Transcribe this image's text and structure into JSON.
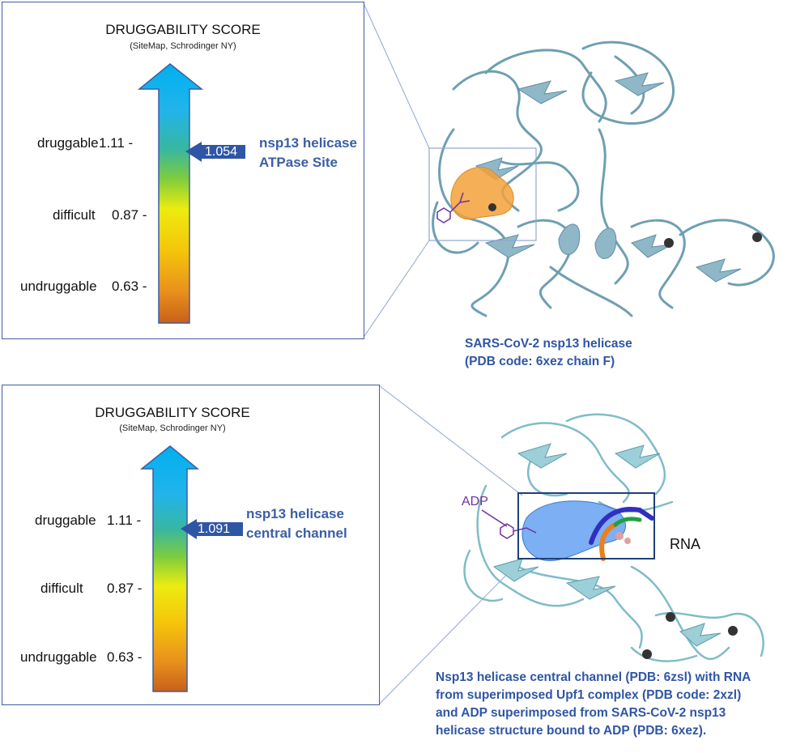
{
  "panels": [
    {
      "title": "DRUGGABILITY SCORE",
      "subtitle": "(SiteMap, Schrodinger NY)",
      "levels": [
        {
          "label": "druggable",
          "value": "1.11 -"
        },
        {
          "label": "difficult",
          "value": "0.87 -"
        },
        {
          "label": "undruggable",
          "value": "0.63 -"
        }
      ],
      "score": "1.054",
      "site_line1": "nsp13 helicase",
      "site_line2": "ATPase Site"
    },
    {
      "title": "DRUGGABILITY SCORE",
      "subtitle": "(SiteMap, Schrodinger NY)",
      "levels": [
        {
          "label": "druggable",
          "value": "1.11 -"
        },
        {
          "label": "difficult",
          "value": "0.87 -"
        },
        {
          "label": "undruggable",
          "value": "0.63 -"
        }
      ],
      "score": "1.091",
      "site_line1": "nsp13 helicase",
      "site_line2": "central channel"
    }
  ],
  "structure_top": {
    "caption_line1": "SARS-CoV-2 nsp13 helicase",
    "caption_line2": "(PDB code: 6xez chain F)"
  },
  "structure_bottom": {
    "adp_label": "ADP",
    "rna_label": "RNA",
    "caption_line1": "Nsp13 helicase central channel (PDB: 6zsl) with RNA",
    "caption_line2": "from superimposed Upf1 complex (PDB code: 2xzl)",
    "caption_line3": "and ADP superimposed from SARS-CoV-2 nsp13",
    "caption_line4": "helicase structure bound to ADP (PDB: 6xez)."
  },
  "colors": {
    "frame": "#3b5fa6",
    "caption": "#2f56a5",
    "arrow_top": "#00b0f0",
    "protein_top": "#6e9fb3",
    "protein_bottom": "#7fbcc8",
    "pocket_top": "#f3a13a",
    "pocket_bottom": "#5b9bf0",
    "adp": "#7030a0"
  }
}
